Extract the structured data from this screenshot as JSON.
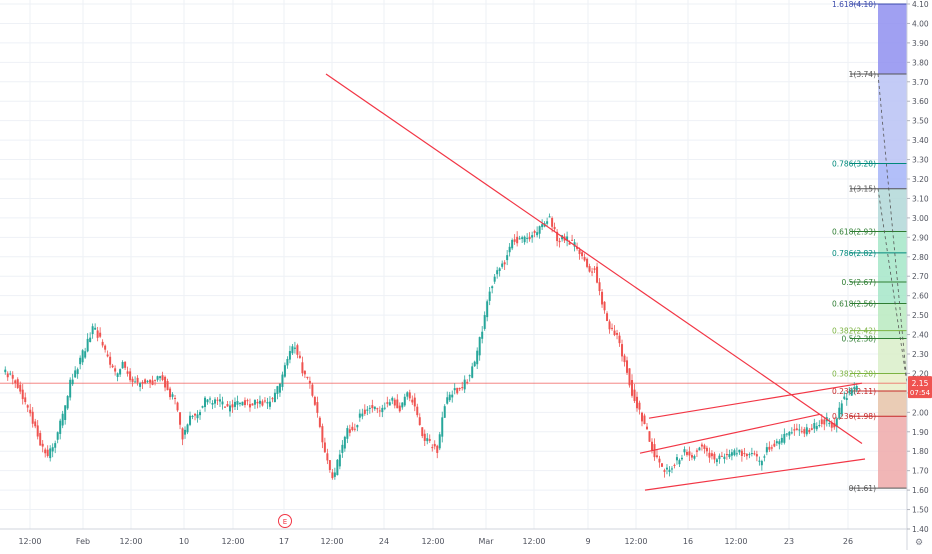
{
  "chart_data": {
    "type": "candlestick",
    "title": "",
    "xlabel": "",
    "ylabel": "",
    "ylim": [
      1.4,
      4.1
    ],
    "x_tick_labels": [
      "12:00",
      "Feb",
      "12:00",
      "10",
      "12:00",
      "17",
      "12:00",
      "24",
      "12:00",
      "Mar",
      "12:00",
      "9",
      "12:00",
      "16",
      "12:00",
      "23",
      "26"
    ],
    "y_tick_labels": [
      "4.10",
      "4.00",
      "3.90",
      "3.80",
      "3.70",
      "3.60",
      "3.50",
      "3.40",
      "3.30",
      "3.20",
      "3.10",
      "3.00",
      "2.90",
      "2.80",
      "2.70",
      "2.60",
      "2.50",
      "2.40",
      "2.30",
      "2.20",
      "2.10",
      "2.00",
      "1.90",
      "1.80",
      "1.70",
      "1.60",
      "1.50",
      "1.40"
    ],
    "grid": true,
    "last_price": {
      "value": 2.15,
      "label": "2.15",
      "countdown": "07:54"
    },
    "price_series": [
      2.22,
      2.18,
      2.14,
      2.05,
      1.95,
      1.84,
      1.78,
      1.86,
      1.98,
      2.15,
      2.24,
      2.33,
      2.44,
      2.38,
      2.27,
      2.2,
      2.24,
      2.18,
      2.15,
      2.16,
      2.15,
      2.19,
      2.12,
      2.05,
      1.88,
      1.97,
      2.0,
      2.06,
      2.05,
      2.05,
      2.02,
      2.04,
      2.06,
      2.04,
      2.05,
      2.04,
      2.06,
      2.15,
      2.28,
      2.35,
      2.22,
      2.14,
      1.98,
      1.78,
      1.65,
      1.78,
      1.9,
      1.93,
      2.0,
      2.03,
      2.0,
      2.04,
      2.07,
      2.01,
      2.09,
      2.04,
      1.88,
      1.84,
      1.8,
      2.05,
      2.1,
      2.12,
      2.17,
      2.25,
      2.43,
      2.64,
      2.72,
      2.78,
      2.89,
      2.88,
      2.9,
      2.92,
      2.95,
      3.01,
      2.89,
      2.9,
      2.87,
      2.83,
      2.75,
      2.73,
      2.57,
      2.43,
      2.4,
      2.26,
      2.1,
      2.0,
      1.9,
      1.78,
      1.72,
      1.7,
      1.75,
      1.8,
      1.78,
      1.82,
      1.8,
      1.76,
      1.76,
      1.78,
      1.8,
      1.77,
      1.78,
      1.74,
      1.82,
      1.83,
      1.86,
      1.89,
      1.91,
      1.9,
      1.92,
      1.95,
      1.96,
      1.93,
      2.05,
      2.1,
      2.15
    ],
    "lines": [
      {
        "name": "downtrend",
        "from": [
          3.74
        ],
        "to": [
          1.84
        ]
      },
      {
        "name": "channel-upper",
        "from": [
          1.97
        ],
        "to": [
          2.15
        ]
      },
      {
        "name": "channel-middle",
        "from": [
          1.79
        ],
        "to": [
          1.99
        ]
      },
      {
        "name": "channel-lower",
        "from": [
          1.6
        ],
        "to": [
          1.76
        ]
      }
    ],
    "fib_levels": [
      {
        "label": "1.618(4.10)",
        "value": 4.1,
        "color": "#3949ab"
      },
      {
        "label": "1(3.74)",
        "value": 3.74,
        "color": "#555555"
      },
      {
        "label": "0.786(3.28)",
        "value": 3.28,
        "color": "#00897b"
      },
      {
        "label": "1(3.15)",
        "value": 3.15,
        "color": "#555555"
      },
      {
        "label": "0.618(2.93)",
        "value": 2.93,
        "color": "#2e7d32"
      },
      {
        "label": "0.786(2.82)",
        "value": 2.82,
        "color": "#00897b"
      },
      {
        "label": "0.5(2.67)",
        "value": 2.67,
        "color": "#2e7d32"
      },
      {
        "label": "0.618(2.56)",
        "value": 2.56,
        "color": "#2e7d32"
      },
      {
        "label": "0.382(2.42)",
        "value": 2.42,
        "color": "#7cb342"
      },
      {
        "label": "0.5(2.38)",
        "value": 2.38,
        "color": "#2e7d32"
      },
      {
        "label": "0.382(2.20)",
        "value": 2.2,
        "color": "#7cb342"
      },
      {
        "label": "0.236(2.11)",
        "value": 2.11,
        "color": "#c62828"
      },
      {
        "label": "0.236(1.98)",
        "value": 1.98,
        "color": "#c62828"
      },
      {
        "label": "0(1.61)",
        "value": 1.61,
        "color": "#555555"
      }
    ],
    "fib_zones": [
      {
        "from": 4.1,
        "to": 3.74,
        "color": "#8f8ff0"
      },
      {
        "from": 3.74,
        "to": 3.28,
        "color": "#b9c2f4"
      },
      {
        "from": 3.28,
        "to": 3.15,
        "color": "#a5b4f8"
      },
      {
        "from": 3.15,
        "to": 2.93,
        "color": "#b2d8d8"
      },
      {
        "from": 2.93,
        "to": 2.56,
        "color": "#a5e6c8"
      },
      {
        "from": 2.56,
        "to": 2.38,
        "color": "#b8eabf"
      },
      {
        "from": 2.38,
        "to": 2.2,
        "color": "#d9efc9"
      },
      {
        "from": 2.2,
        "to": 2.11,
        "color": "#e8f0c8"
      },
      {
        "from": 2.11,
        "to": 1.98,
        "color": "#e6c3a8"
      },
      {
        "from": 1.98,
        "to": 1.61,
        "color": "#efa9a9"
      }
    ],
    "event_marker": "E"
  }
}
